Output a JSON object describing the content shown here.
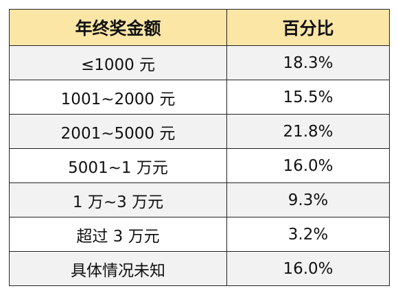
{
  "table": {
    "header": [
      "年终奖金额",
      "百分比"
    ],
    "rows": [
      [
        "≤1000 元",
        "18.3%"
      ],
      [
        "1001~2000 元",
        "15.5%"
      ],
      [
        "2001~5000 元",
        "21.8%"
      ],
      [
        "5001~1 万元",
        "16.0%"
      ],
      [
        "1 万~3 万元",
        "9.3%"
      ],
      [
        "超过 3 万元",
        "3.2%"
      ],
      [
        "具体情况未知",
        "16.0%"
      ]
    ]
  }
}
